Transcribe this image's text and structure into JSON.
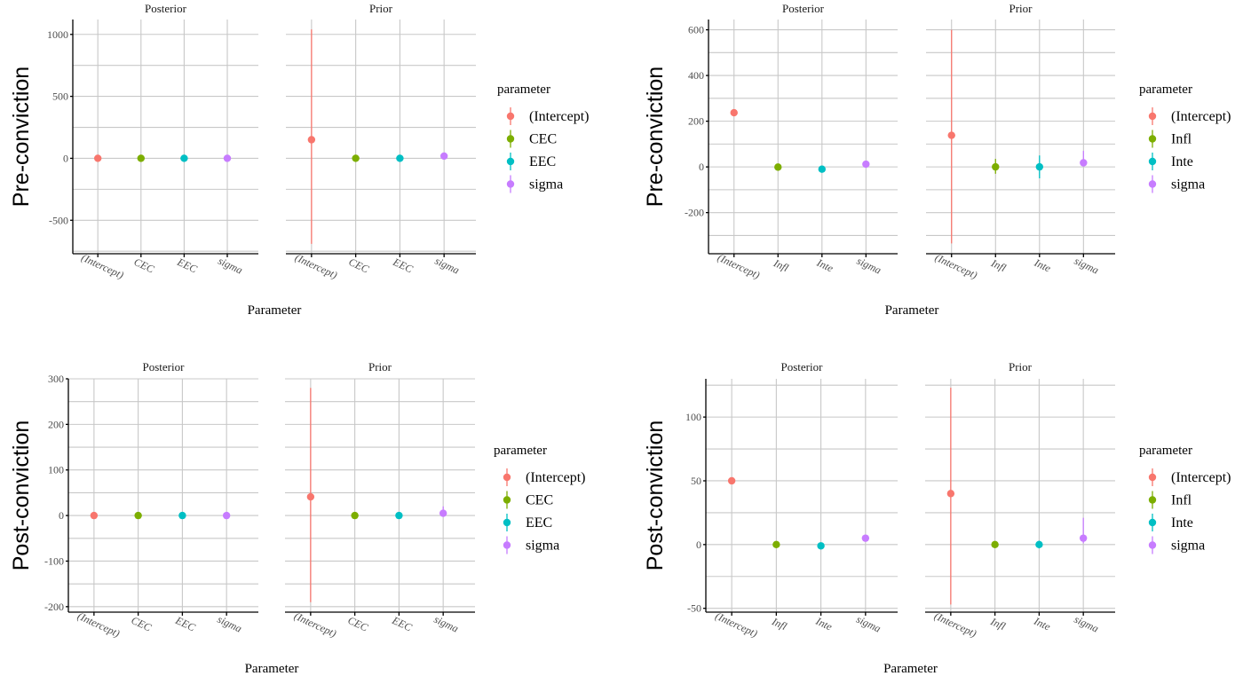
{
  "chart_data": [
    {
      "type": "scatter",
      "subtype": "pointrange",
      "position": "top-left",
      "ylabel": "Pre-conviction",
      "xlabel": "Parameter",
      "facets": [
        "Posterior",
        "Prior"
      ],
      "categories": [
        "(Intercept)",
        "CEC",
        "EEC",
        "sigma"
      ],
      "ylim": [
        -770,
        1120
      ],
      "yticks": [
        -500,
        0,
        500,
        1000
      ],
      "ytick_labels": [
        "-500",
        "0",
        "500",
        "1000"
      ],
      "minor_grid": [
        -750,
        -250,
        250,
        750
      ],
      "legend": {
        "title": "parameter",
        "entries": [
          "(Intercept)",
          "CEC",
          "EEC",
          "sigma"
        ],
        "placement": "right"
      },
      "series": [
        {
          "facet": "Posterior",
          "values": [
            0,
            0,
            0,
            0
          ],
          "lower": [
            0,
            0,
            0,
            0
          ],
          "upper": [
            0,
            0,
            0,
            0
          ]
        },
        {
          "facet": "Prior",
          "values": [
            150,
            0,
            0,
            18
          ],
          "lower": [
            -690,
            0,
            0,
            10
          ],
          "upper": [
            1040,
            0,
            0,
            30
          ]
        }
      ]
    },
    {
      "type": "scatter",
      "subtype": "pointrange",
      "position": "top-right",
      "ylabel": "Pre-conviction",
      "xlabel": "Parameter",
      "facets": [
        "Posterior",
        "Prior"
      ],
      "categories": [
        "(Intercept)",
        "Infl",
        "Inte",
        "sigma"
      ],
      "ylim": [
        -380,
        645
      ],
      "yticks": [
        -200,
        0,
        200,
        400,
        600
      ],
      "ytick_labels": [
        "-200",
        "0",
        "200",
        "400",
        "600"
      ],
      "minor_grid": [
        -300,
        -100,
        100,
        300,
        500
      ],
      "legend": {
        "title": "parameter",
        "entries": [
          "(Intercept)",
          "Infl",
          "Inte",
          "sigma"
        ],
        "placement": "right"
      },
      "series": [
        {
          "facet": "Posterior",
          "values": [
            237,
            -1,
            -10,
            12
          ],
          "lower": [
            230,
            -4,
            -14,
            10
          ],
          "upper": [
            244,
            2,
            -6,
            14
          ]
        },
        {
          "facet": "Prior",
          "values": [
            138,
            0,
            0,
            18
          ],
          "lower": [
            -335,
            -30,
            -50,
            2
          ],
          "upper": [
            600,
            35,
            50,
            70
          ]
        }
      ]
    },
    {
      "type": "scatter",
      "subtype": "pointrange",
      "position": "bottom-left",
      "ylabel": "Post-conviction",
      "xlabel": "Parameter",
      "facets": [
        "Posterior",
        "Prior"
      ],
      "categories": [
        "(Intercept)",
        "CEC",
        "EEC",
        "sigma"
      ],
      "ylim": [
        -212,
        300
      ],
      "yticks": [
        -200,
        -100,
        0,
        100,
        200,
        300
      ],
      "ytick_labels": [
        "-200",
        "-100",
        "0",
        "100",
        "200",
        "300"
      ],
      "minor_grid": [
        -150,
        -50,
        50,
        150,
        250
      ],
      "legend": {
        "title": "parameter",
        "entries": [
          "(Intercept)",
          "CEC",
          "EEC",
          "sigma"
        ],
        "placement": "right"
      },
      "series": [
        {
          "facet": "Posterior",
          "values": [
            0,
            0,
            0,
            0
          ],
          "lower": [
            0,
            0,
            0,
            0
          ],
          "upper": [
            0,
            0,
            0,
            0
          ]
        },
        {
          "facet": "Prior",
          "values": [
            41,
            0,
            0,
            5
          ],
          "lower": [
            -190,
            -2,
            -2,
            1
          ],
          "upper": [
            280,
            2,
            2,
            20
          ]
        }
      ]
    },
    {
      "type": "scatter",
      "subtype": "pointrange",
      "position": "bottom-right",
      "ylabel": "Post-conviction",
      "xlabel": "Parameter",
      "facets": [
        "Posterior",
        "Prior"
      ],
      "categories": [
        "(Intercept)",
        "Infl",
        "Inte",
        "sigma"
      ],
      "ylim": [
        -53,
        130
      ],
      "yticks": [
        -50,
        0,
        50,
        100
      ],
      "ytick_labels": [
        "-50",
        "0",
        "50",
        "100"
      ],
      "minor_grid": [
        -25,
        25,
        75,
        125
      ],
      "legend": {
        "title": "parameter",
        "entries": [
          "(Intercept)",
          "Infl",
          "Inte",
          "sigma"
        ],
        "placement": "right"
      },
      "series": [
        {
          "facet": "Posterior",
          "values": [
            50,
            0,
            -1,
            5
          ],
          "lower": [
            48,
            -1,
            -2,
            4
          ],
          "upper": [
            52,
            1,
            0,
            6
          ]
        },
        {
          "facet": "Prior",
          "values": [
            40,
            0,
            0,
            5
          ],
          "lower": [
            -47,
            -2,
            -3,
            1
          ],
          "upper": [
            123,
            2,
            3,
            21
          ]
        }
      ]
    }
  ],
  "colors": [
    "#F8766D",
    "#7CAE00",
    "#00BFC4",
    "#C77CFF"
  ]
}
